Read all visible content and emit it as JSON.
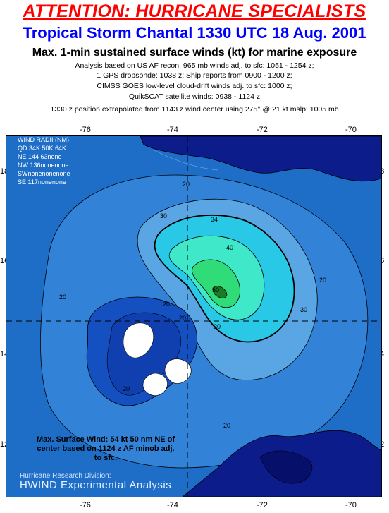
{
  "header": {
    "attention": "ATTENTION: HURRICANE SPECIALISTS",
    "storm_title": "Tropical Storm Chantal 1330 UTC 18 Aug. 2001",
    "subtitle": "Max. 1-min sustained surface winds (kt) for marine exposure",
    "lines": [
      "Analysis based on US AF recon. 965 mb winds adj. to sfc: 1051 - 1254 z;",
      "1 GPS dropsonde: 1038 z; Ship reports from  0900 - 1200 z;",
      "CIMSS GOES low-level cloud-drift winds adj. to sfc: 1000 z;",
      "QuikSCAT satellite winds: 0938 - 1124 z",
      "1330 z position extrapolated from 1143 z wind center using 275° @ 21 kt  mslp: 1005 mb"
    ]
  },
  "map": {
    "lon_labels": [
      "-76",
      "-74",
      "-72",
      "-70"
    ],
    "lat_labels": [
      "18",
      "16",
      "14",
      "12"
    ],
    "wind_radii": {
      "title": "WIND RADII (NM)",
      "header": "QD  34K  50K  64K",
      "rows": [
        "NE  144   63none",
        "NW  136nonenone",
        "SWnonenonenone",
        "SE  117nonenone"
      ]
    },
    "contour_labels": [
      "20",
      "20",
      "20",
      "20",
      "20",
      "20",
      "30",
      "30",
      "30",
      "34",
      "40",
      "50",
      "20"
    ],
    "max_surface_wind": "Max. Surface Wind: 54 kt 50 nm NE of center based on 1124 z AF minob adj. to sfc.",
    "credit_line1": "Hurricane Research Division:",
    "credit_line2": "HWIND Experimental Analysis",
    "colors": {
      "ocean_low": "#1e6ec8",
      "wind_20": "#3282d8",
      "wind_30": "#5aa6e4",
      "wind_34": "#28c8e6",
      "wind_40": "#3ee8c8",
      "wind_50": "#30dc78",
      "core": "#1a7a2a",
      "land": "#0c1c8a",
      "white_land": "#ffffff"
    }
  }
}
